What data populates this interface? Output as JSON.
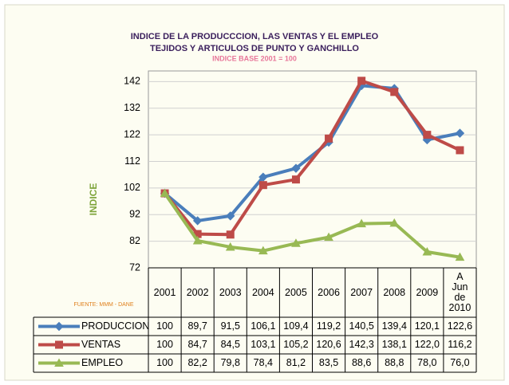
{
  "chart_data": {
    "type": "line",
    "title": "INDICE DE LA PRODUCCCION, LAS VENTAS Y EL EMPLEO",
    "subtitle": "TEJIDOS Y ARTICULOS DE PUNTO Y GANCHILLO",
    "note": "INDICE BASE 2001 = 100",
    "y_label": "INDICE",
    "source": "FUENTE: MMM - DANE",
    "categories": [
      "2001",
      "2002",
      "2003",
      "2004",
      "2005",
      "2006",
      "2007",
      "2008",
      "2009",
      "A Jun de 2010"
    ],
    "series": [
      {
        "name": "PRODUCCION",
        "color": "#4a7ebb",
        "marker": "diamond",
        "values": [
          100,
          89.7,
          91.5,
          106.1,
          109.4,
          119.2,
          140.5,
          139.4,
          120.1,
          122.6
        ],
        "value_labels": [
          "100",
          "89,7",
          "91,5",
          "106,1",
          "109,4",
          "119,2",
          "140,5",
          "139,4",
          "120,1",
          "122,6"
        ]
      },
      {
        "name": "VENTAS",
        "color": "#be4b48",
        "marker": "square",
        "values": [
          100,
          84.7,
          84.5,
          103.1,
          105.2,
          120.6,
          142.3,
          138.1,
          122.0,
          116.2
        ],
        "value_labels": [
          "100",
          "84,7",
          "84,5",
          "103,1",
          "105,2",
          "120,6",
          "142,3",
          "138,1",
          "122,0",
          "116,2"
        ]
      },
      {
        "name": "EMPLEO",
        "color": "#98b954",
        "marker": "triangle",
        "values": [
          100,
          82.2,
          79.8,
          78.4,
          81.2,
          83.5,
          88.6,
          88.8,
          78.0,
          76.0
        ],
        "value_labels": [
          "100",
          "82,2",
          "79,8",
          "78,4",
          "81,2",
          "83,5",
          "88,6",
          "88,8",
          "78,0",
          "76,0"
        ]
      }
    ],
    "ylim": [
      72,
      146
    ],
    "yticks": [
      72,
      82,
      92,
      102,
      112,
      122,
      132,
      142
    ],
    "grid": true
  }
}
